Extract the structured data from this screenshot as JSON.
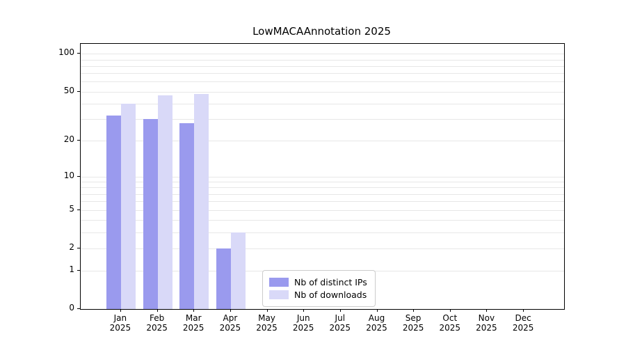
{
  "chart_data": {
    "type": "bar",
    "title": "LowMACAAnnotation 2025",
    "categories": [
      "Jan",
      "Feb",
      "Mar",
      "Apr",
      "May",
      "Jun",
      "Jul",
      "Aug",
      "Sep",
      "Oct",
      "Nov",
      "Dec"
    ],
    "year_label": "2025",
    "series": [
      {
        "name": "Nb of distinct IPs",
        "color": "#9a9aee",
        "values": [
          32,
          30,
          28,
          2,
          0,
          0,
          0,
          0,
          0,
          0,
          0,
          0
        ]
      },
      {
        "name": "Nb of downloads",
        "color": "#d9d9f8",
        "values": [
          40,
          47,
          48,
          3,
          0,
          0,
          0,
          0,
          0,
          0,
          0,
          0
        ]
      }
    ],
    "yticks": [
      0,
      1,
      2,
      5,
      10,
      20,
      50,
      100
    ],
    "gridline_values": [
      1,
      2,
      3,
      4,
      5,
      6,
      7,
      8,
      9,
      10,
      20,
      30,
      40,
      50,
      60,
      70,
      80,
      90,
      100
    ],
    "y_scale": "log1p",
    "ymax": 120,
    "xlabel": "",
    "ylabel": "",
    "grid": "horizontal",
    "legend_position": "lower-center-inside"
  },
  "colors": {
    "grid": "#e7e7e7",
    "axis": "#000000",
    "background": "#ffffff"
  }
}
